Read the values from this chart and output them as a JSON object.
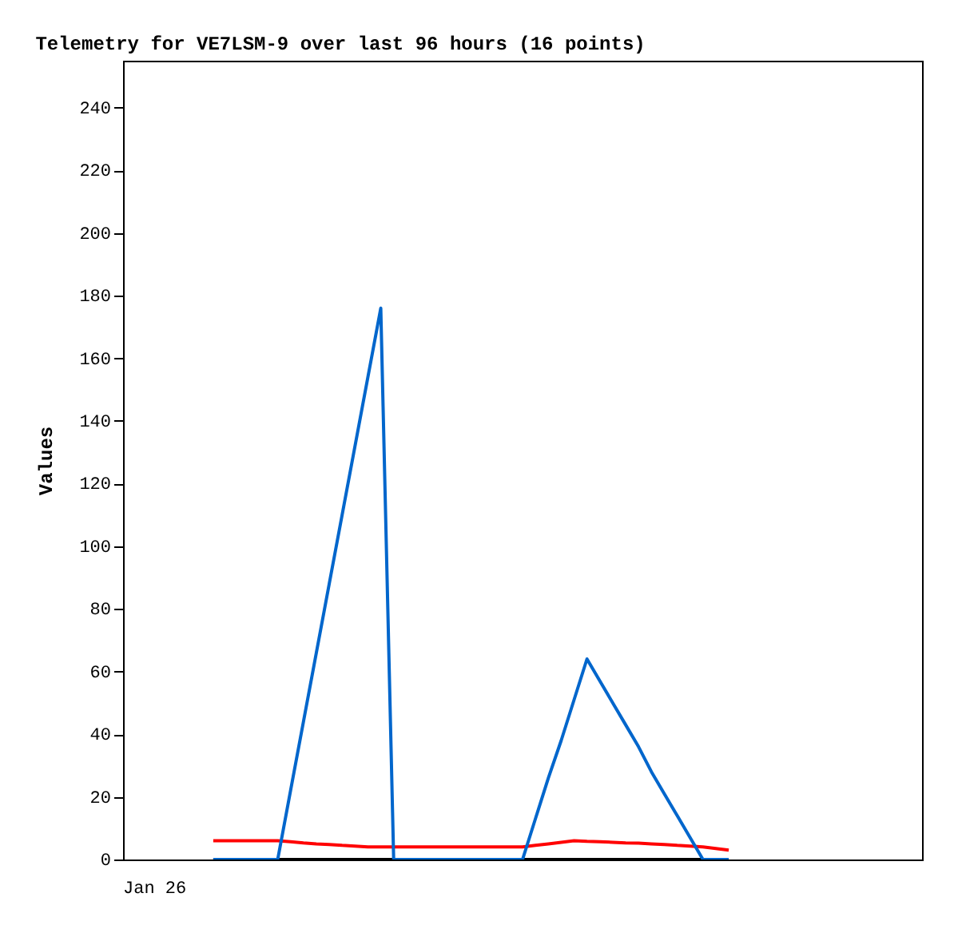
{
  "chart_data": {
    "type": "line",
    "title": "Telemetry for VE7LSM-9 over last 96 hours (16 points)",
    "ylabel": "Values",
    "annotations": [
      "Jan 26"
    ],
    "categories": [
      null,
      null,
      null,
      null,
      null,
      null,
      null,
      null,
      null,
      null,
      null,
      null,
      null,
      null,
      null,
      null,
      null,
      null,
      null,
      null,
      null,
      null,
      null,
      null,
      null,
      null,
      null,
      null,
      null,
      null,
      null,
      null,
      null,
      null,
      null,
      null,
      null,
      null,
      null,
      null,
      null,
      null,
      null,
      null,
      null,
      null,
      null,
      null,
      null,
      null,
      null,
      null,
      null,
      null,
      null,
      null,
      null,
      null,
      null,
      null,
      null,
      null,
      null
    ],
    "ylim": [
      0,
      255
    ],
    "yticks": [
      0,
      20,
      40,
      60,
      80,
      100,
      120,
      140,
      160,
      180,
      200,
      220,
      240
    ],
    "tick_labels": "y",
    "grid": false,
    "legend": false,
    "marker": "none",
    "line_style": "solid",
    "series": [
      {
        "color": "#000000",
        "values": [
          null,
          null,
          null,
          null,
          null,
          null,
          null,
          0,
          0,
          0,
          0,
          0,
          0,
          0,
          0,
          0,
          0,
          0,
          0,
          0,
          0,
          0,
          0,
          0,
          0,
          0,
          0,
          0,
          0,
          0,
          0,
          0,
          0,
          0,
          0,
          0,
          0,
          0,
          0,
          0,
          0,
          0,
          0,
          0,
          0,
          0,
          0,
          0,
          null,
          null,
          null,
          null,
          null,
          null,
          null,
          null,
          null,
          null,
          null,
          null,
          null,
          null,
          null
        ]
      },
      {
        "color": "#ff0000",
        "values": [
          null,
          null,
          null,
          null,
          null,
          null,
          null,
          6,
          6,
          6,
          6,
          6,
          6,
          5.7,
          5.3,
          5,
          4.8,
          4.5,
          4.3,
          4,
          4,
          4,
          4,
          4,
          4,
          4,
          4,
          4,
          4,
          4,
          4,
          4,
          4.5,
          5,
          5.5,
          6,
          5.8,
          5.7,
          5.5,
          5.3,
          5.2,
          5,
          4.8,
          4.5,
          4.3,
          4,
          3.5,
          3,
          null,
          null,
          null,
          null,
          null,
          null,
          null,
          null,
          null,
          null,
          null,
          null,
          null,
          null,
          null
        ]
      },
      {
        "color": "#0066cc",
        "values": [
          null,
          null,
          null,
          null,
          null,
          null,
          null,
          0,
          0,
          0,
          0,
          0,
          0,
          22,
          44,
          66,
          88,
          110,
          132,
          154,
          176,
          0,
          0,
          0,
          0,
          0,
          0,
          0,
          0,
          0,
          0,
          0,
          13,
          26,
          38,
          51,
          64,
          57,
          50,
          43,
          36,
          28,
          21,
          14,
          7,
          0,
          0,
          0,
          null,
          null,
          null,
          null,
          null,
          null,
          null,
          null,
          null,
          null,
          null,
          null,
          null,
          null,
          null
        ]
      }
    ]
  }
}
